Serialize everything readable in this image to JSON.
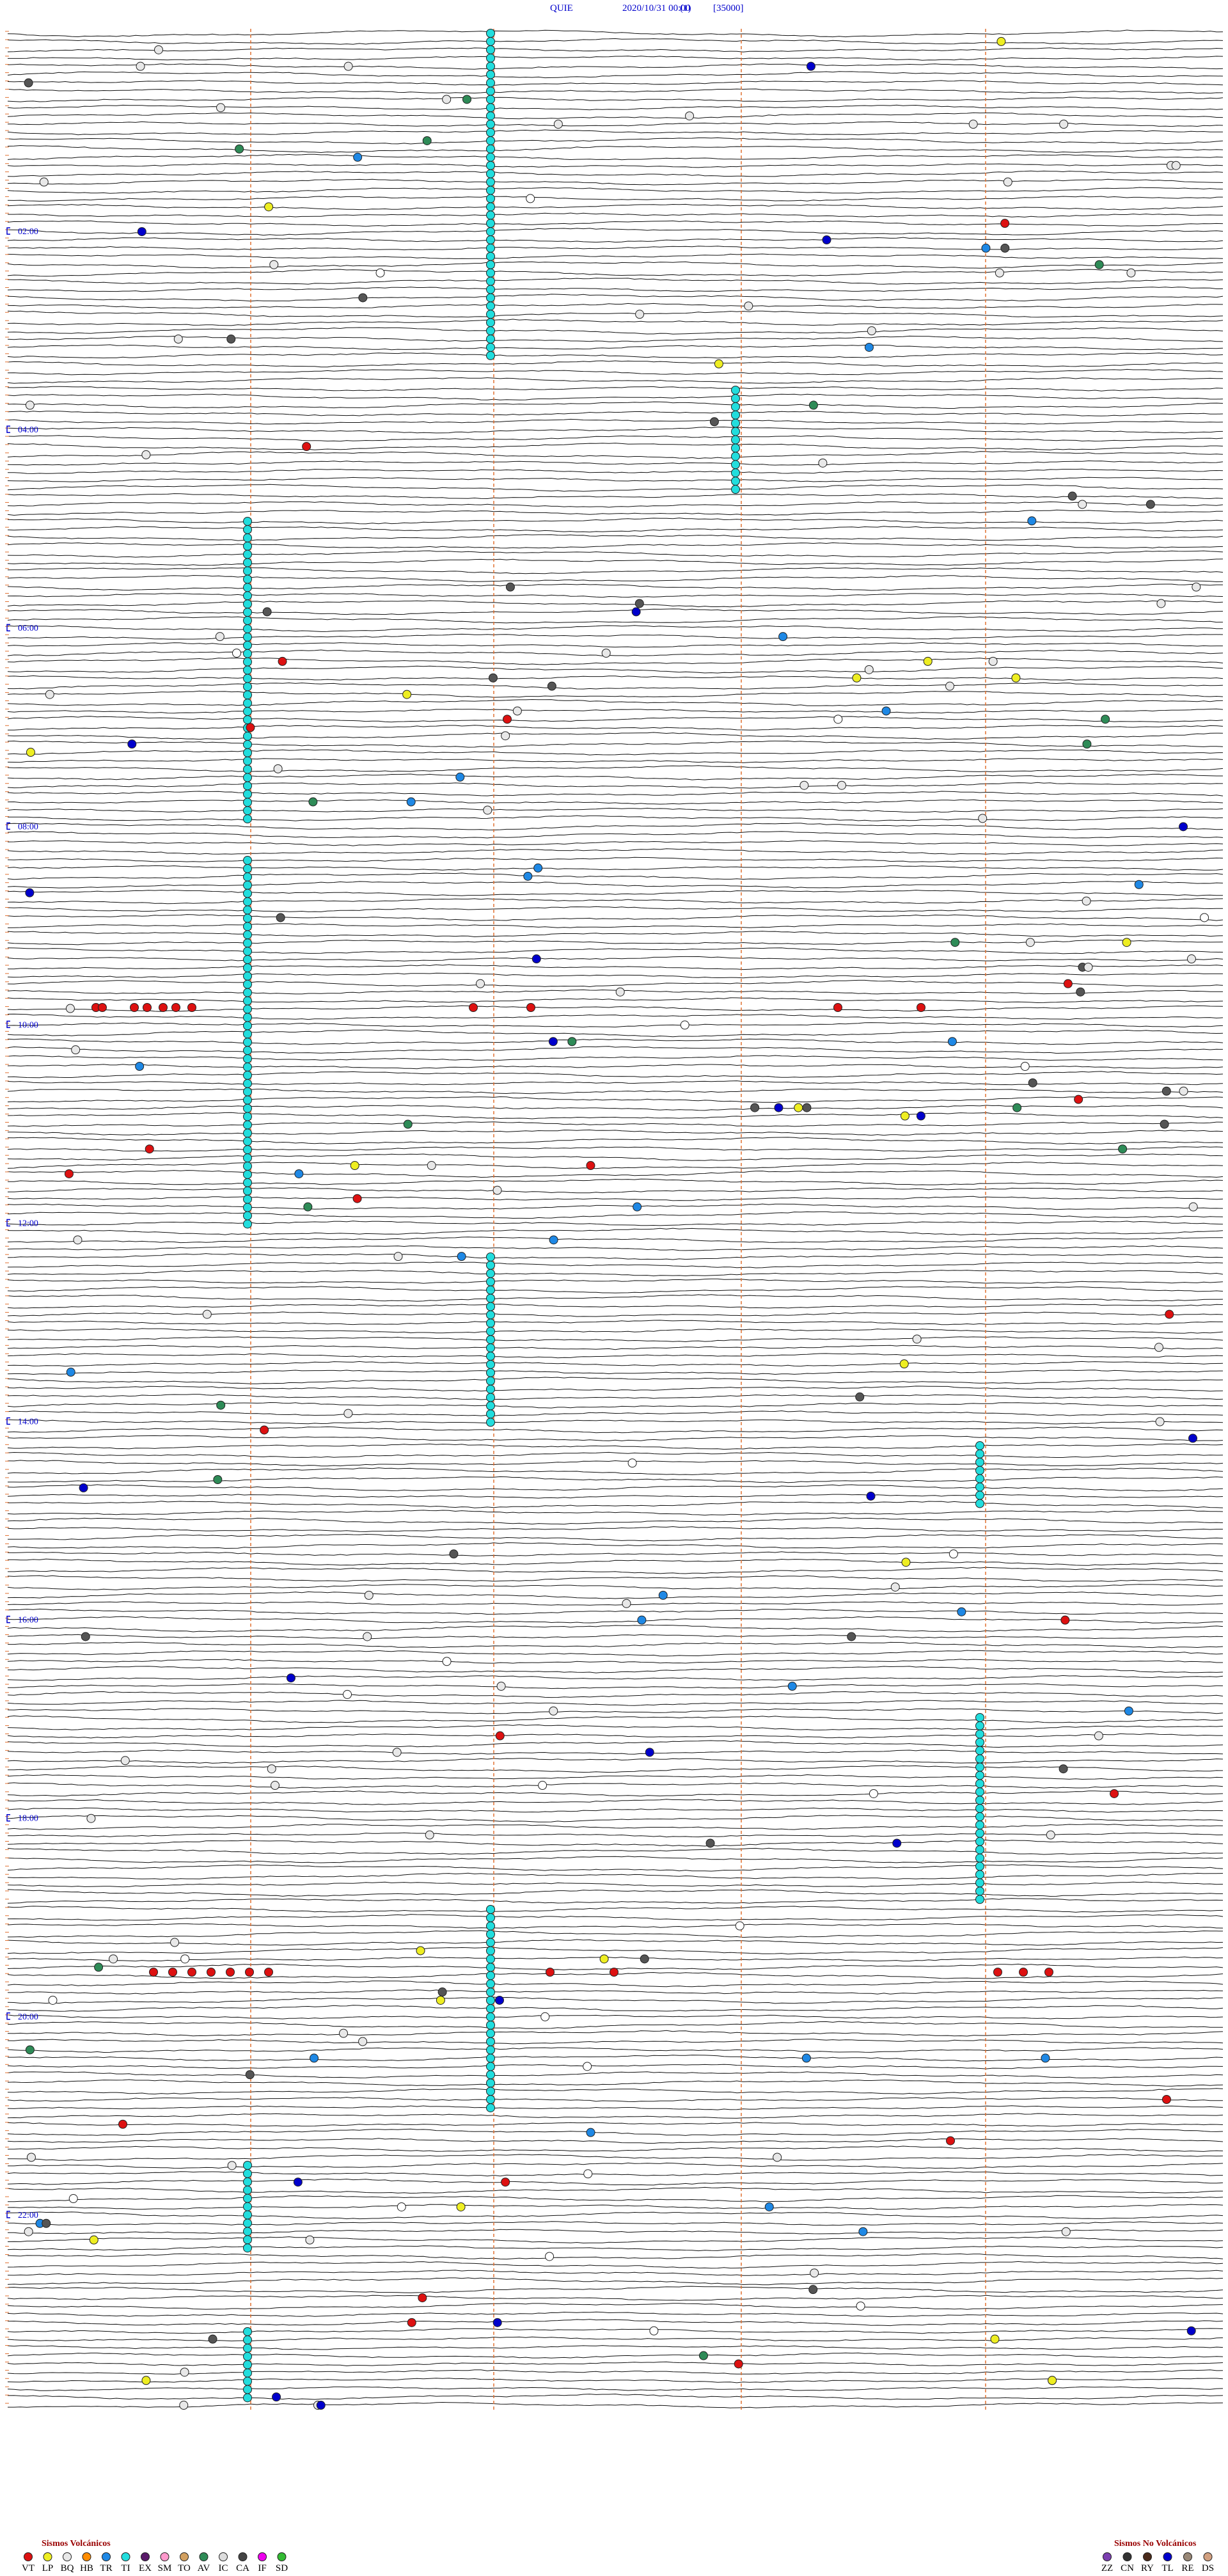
{
  "header": {
    "station": "QUIE",
    "datetime": "2020/10/31 00:00",
    "channel": "(1)",
    "scale": "[35000]"
  },
  "time_labels": [
    "02:00",
    "04:00",
    "06:00",
    "08:00",
    "10:00",
    "12:00",
    "14:00",
    "16:00",
    "18:00",
    "20:00",
    "22:00"
  ],
  "legend_volcanic": {
    "title": "Sismos Volcánicos",
    "items": [
      "VT",
      "LP",
      "BQ",
      "HB",
      "TR",
      "TI",
      "EX",
      "SM",
      "TO",
      "AV",
      "IC",
      "CA",
      "IF",
      "SD"
    ]
  },
  "legend_non_volcanic": {
    "title": "Sismos No Volcánicos",
    "items": [
      "ZZ",
      "CN",
      "RY",
      "TL",
      "RE",
      "DS"
    ]
  }
}
